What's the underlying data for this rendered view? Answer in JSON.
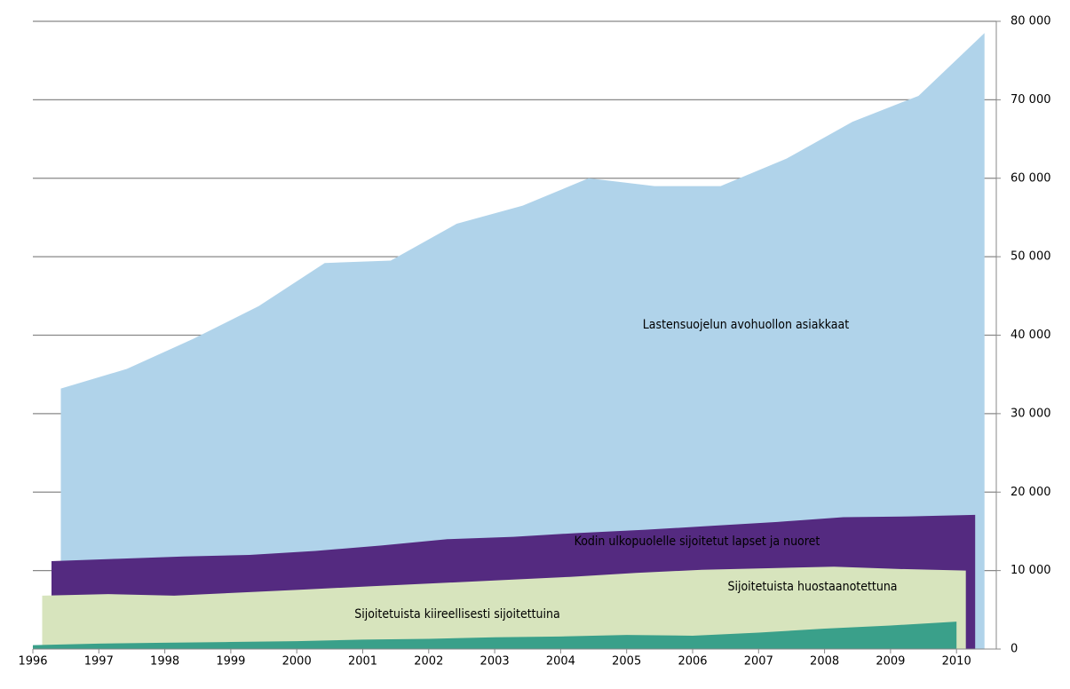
{
  "chart_data": {
    "type": "area",
    "categories": [
      "1996",
      "1997",
      "1998",
      "1999",
      "2000",
      "2001",
      "2002",
      "2003",
      "2004",
      "2005",
      "2006",
      "2007",
      "2008",
      "2009",
      "2010"
    ],
    "series": [
      {
        "name": "Lastensuojelun avohuollon asiakkaat",
        "color": "#b0d3ea",
        "values": [
          33200,
          35700,
          39500,
          43700,
          49200,
          49500,
          54200,
          56500,
          60000,
          59000,
          59000,
          62500,
          67200,
          70500,
          78500
        ]
      },
      {
        "name": "Kodin ulkopuolelle sijoitetut lapset ja nuoret",
        "color": "#542a80",
        "values": [
          11200,
          11500,
          11800,
          12000,
          12500,
          13200,
          14000,
          14300,
          14800,
          15200,
          15700,
          16200,
          16800,
          16900,
          17100
        ]
      },
      {
        "name": "Sijoitetuista huostaanotettuna",
        "color": "#d7e4bd",
        "values": [
          6800,
          7000,
          6800,
          7200,
          7600,
          8000,
          8400,
          8800,
          9200,
          9700,
          10100,
          10300,
          10500,
          10200,
          10000
        ]
      },
      {
        "name": "Sijoitetuista kiireellisesti sijoitettuina",
        "color": "#3aa08a",
        "values": [
          500,
          700,
          800,
          900,
          1000,
          1200,
          1300,
          1500,
          1600,
          1800,
          1700,
          2100,
          2600,
          3000,
          3500
        ]
      }
    ],
    "ylim": [
      0,
      80000
    ],
    "yticks": [
      0,
      {
        "value": 10000,
        "label": "10 000"
      },
      {
        "value": 20000,
        "label": "20 000"
      },
      {
        "value": 30000,
        "label": "30 000"
      },
      {
        "value": 40000,
        "label": "40 000"
      },
      {
        "value": 50000,
        "label": "50 000"
      },
      {
        "value": 60000,
        "label": "60 000"
      },
      {
        "value": 70000,
        "label": "70 000"
      },
      {
        "value": 80000,
        "label": "80 000"
      }
    ],
    "grid": true
  }
}
